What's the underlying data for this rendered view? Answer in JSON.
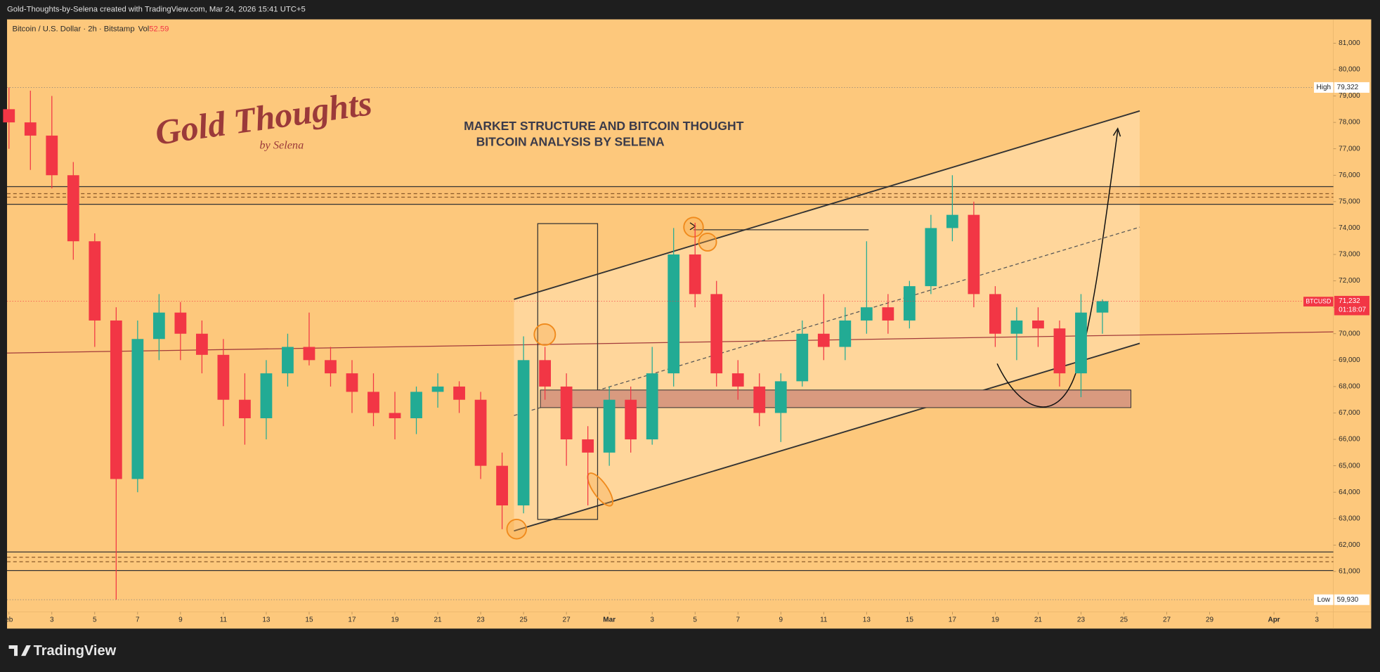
{
  "header": {
    "caption": "Gold-Thoughts-by-Selena created with TradingView.com, Mar 24, 2026 15:41 UTC+5"
  },
  "footer": {
    "brand": "TradingView"
  },
  "logo": {
    "title": "Gold Thoughts",
    "subtitle": "by Selena"
  },
  "chart_data": {
    "type": "candlestick",
    "symbol": "Bitcoin / U.S. Dollar · 2h · Bitstamp",
    "volume_label": "Vol",
    "volume": 52.59,
    "title": "MARKET STRUCTURE AND BITCOIN THOUGHT",
    "subtitle": "BITCOIN ANALYSIS BY SELENA",
    "up_color": "#22ab94",
    "down_color": "#f23645",
    "x": [
      0,
      1,
      2,
      3,
      4,
      5,
      6,
      7,
      8,
      9,
      10,
      11,
      12,
      13,
      14,
      15,
      16,
      17,
      18,
      19,
      20,
      21,
      22,
      23,
      24,
      25,
      26,
      27,
      28,
      29,
      30,
      31,
      32,
      33,
      34,
      35,
      36,
      37,
      38,
      39,
      40,
      41,
      42,
      43,
      44,
      45,
      46,
      47,
      48,
      49,
      50,
      51
    ],
    "open": [
      78500,
      78000,
      77500,
      76000,
      73500,
      70500,
      64500,
      69800,
      70800,
      70000,
      69200,
      67500,
      66800,
      68500,
      69500,
      69000,
      68500,
      67800,
      67000,
      66800,
      67800,
      68000,
      67500,
      65000,
      63500,
      69000,
      68000,
      66000,
      65500,
      67500,
      66000,
      68500,
      73000,
      71500,
      68500,
      68000,
      67000,
      68200,
      70000,
      69500,
      70500,
      71000,
      70500,
      71800,
      74000,
      74500,
      71500,
      70000,
      70500,
      70200,
      68500,
      70800
    ],
    "high": [
      79322,
      79200,
      79000,
      76500,
      73800,
      71000,
      70500,
      71500,
      71200,
      70500,
      69800,
      68500,
      69000,
      70000,
      70800,
      69500,
      69000,
      68500,
      67800,
      68000,
      68500,
      68200,
      67800,
      65500,
      69900,
      69500,
      68500,
      66500,
      68000,
      68000,
      69500,
      74000,
      74200,
      72000,
      69000,
      68500,
      68500,
      70500,
      71500,
      71000,
      73500,
      71500,
      72000,
      74500,
      76000,
      75000,
      71800,
      71000,
      71000,
      70500,
      71500,
      71300
    ],
    "low": [
      77000,
      76200,
      75500,
      72800,
      69500,
      59930,
      64000,
      69000,
      69000,
      68500,
      66500,
      65800,
      66000,
      68000,
      68800,
      68000,
      67000,
      66500,
      66000,
      66200,
      67200,
      67000,
      64500,
      62600,
      63200,
      67500,
      65000,
      63500,
      65000,
      65500,
      65800,
      68000,
      71000,
      68000,
      67500,
      66500,
      65900,
      68000,
      69000,
      69000,
      70000,
      70000,
      70200,
      71500,
      73500,
      71000,
      69500,
      69000,
      69500,
      68000,
      67600,
      70000
    ],
    "close": [
      78000,
      77500,
      76000,
      73500,
      70500,
      64500,
      69800,
      70800,
      70000,
      69200,
      67500,
      66800,
      68500,
      69500,
      69000,
      68500,
      67800,
      67000,
      66800,
      67800,
      68000,
      67500,
      65000,
      63500,
      69000,
      68000,
      66000,
      65500,
      67500,
      66000,
      68500,
      73000,
      71500,
      68500,
      68000,
      67000,
      68200,
      70000,
      69500,
      70500,
      71000,
      70500,
      71800,
      74000,
      74500,
      71500,
      70000,
      70500,
      70200,
      68500,
      70800,
      71232
    ],
    "xlim": [
      -0.09,
      61.77
    ],
    "xticks": [
      {
        "value": 0,
        "label": "eb"
      },
      {
        "value": 2,
        "label": "3"
      },
      {
        "value": 4,
        "label": "5"
      },
      {
        "value": 6,
        "label": "7"
      },
      {
        "value": 8,
        "label": "9"
      },
      {
        "value": 10,
        "label": "11"
      },
      {
        "value": 12,
        "label": "13"
      },
      {
        "value": 14,
        "label": "15"
      },
      {
        "value": 16,
        "label": "17"
      },
      {
        "value": 18,
        "label": "19"
      },
      {
        "value": 20,
        "label": "21"
      },
      {
        "value": 22,
        "label": "23"
      },
      {
        "value": 24,
        "label": "25"
      },
      {
        "value": 26,
        "label": "27"
      },
      {
        "value": 28,
        "label": "Mar"
      },
      {
        "value": 30,
        "label": "3"
      },
      {
        "value": 32,
        "label": "5"
      },
      {
        "value": 34,
        "label": "7"
      },
      {
        "value": 36,
        "label": "9"
      },
      {
        "value": 38,
        "label": "11"
      },
      {
        "value": 40,
        "label": "13"
      },
      {
        "value": 42,
        "label": "15"
      },
      {
        "value": 44,
        "label": "17"
      },
      {
        "value": 46,
        "label": "19"
      },
      {
        "value": 48,
        "label": "21"
      },
      {
        "value": 50,
        "label": "23"
      },
      {
        "value": 52,
        "label": "25"
      },
      {
        "value": 54,
        "label": "27"
      },
      {
        "value": 56,
        "label": "29"
      },
      {
        "value": 59,
        "label": "Apr"
      },
      {
        "value": 61,
        "label": "3"
      }
    ],
    "ylim": [
      59470,
      81900
    ],
    "yticks": [
      {
        "value": 61000,
        "label": "61,000"
      },
      {
        "value": 62000,
        "label": "62,000"
      },
      {
        "value": 63000,
        "label": "63,000"
      },
      {
        "value": 64000,
        "label": "64,000"
      },
      {
        "value": 65000,
        "label": "65,000"
      },
      {
        "value": 66000,
        "label": "66,000"
      },
      {
        "value": 67000,
        "label": "67,000"
      },
      {
        "value": 68000,
        "label": "68,000"
      },
      {
        "value": 69000,
        "label": "69,000"
      },
      {
        "value": 70000,
        "label": "70,000"
      },
      {
        "value": 71000,
        "label": "71,000"
      },
      {
        "value": 72000,
        "label": "72,000"
      },
      {
        "value": 73000,
        "label": "73,000"
      },
      {
        "value": 74000,
        "label": "74,000"
      },
      {
        "value": 75000,
        "label": "75,000"
      },
      {
        "value": 76000,
        "label": "76,000"
      },
      {
        "value": 77000,
        "label": "77,000"
      },
      {
        "value": 78000,
        "label": "78,000"
      },
      {
        "value": 79000,
        "label": "79,000"
      },
      {
        "value": 80000,
        "label": "80,000"
      },
      {
        "value": 81000,
        "label": "81,000"
      }
    ],
    "high_marker": {
      "title": "High",
      "value": 79322,
      "label": "79,322"
    },
    "low_marker": {
      "title": "Low",
      "value": 59930,
      "label": "59,930"
    },
    "last_price": {
      "symbol": "BTCUSD",
      "value": 71232,
      "label": "71,232",
      "countdown": "01:18:07"
    }
  }
}
